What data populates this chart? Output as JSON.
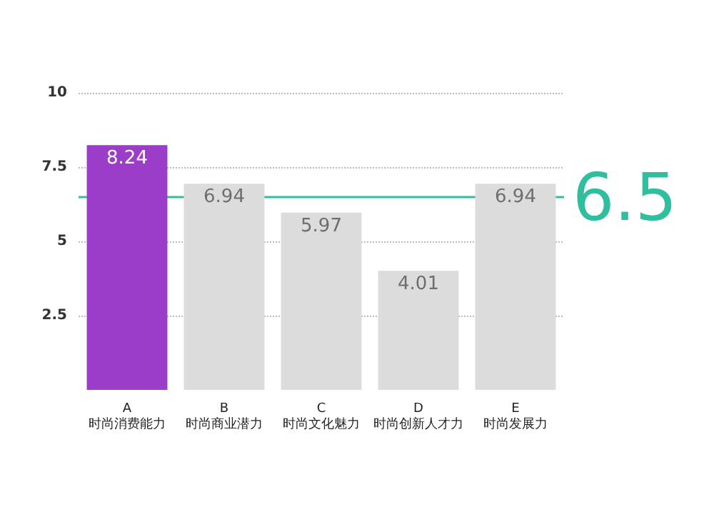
{
  "chart_data": {
    "type": "bar",
    "categories": [
      "A\n时尚消费能力",
      "B\n时尚商业潜力",
      "C\n时尚文化魅力",
      "D\n时尚创新人才力",
      "E\n时尚发展力"
    ],
    "values": [
      8.24,
      6.94,
      5.97,
      4.01,
      6.94
    ],
    "colors": [
      "#9b3dc8",
      "#dcdcdc",
      "#dcdcdc",
      "#dcdcdc",
      "#dcdcdc"
    ],
    "data_labels": true,
    "ylim": [
      0,
      10
    ],
    "yticks": [
      2.5,
      5,
      7.5,
      10
    ],
    "grid": "y",
    "ref_lines": [
      {
        "axis": "y",
        "value": 6.5,
        "label": "6.5",
        "color": "#2fbf9f"
      }
    ]
  }
}
